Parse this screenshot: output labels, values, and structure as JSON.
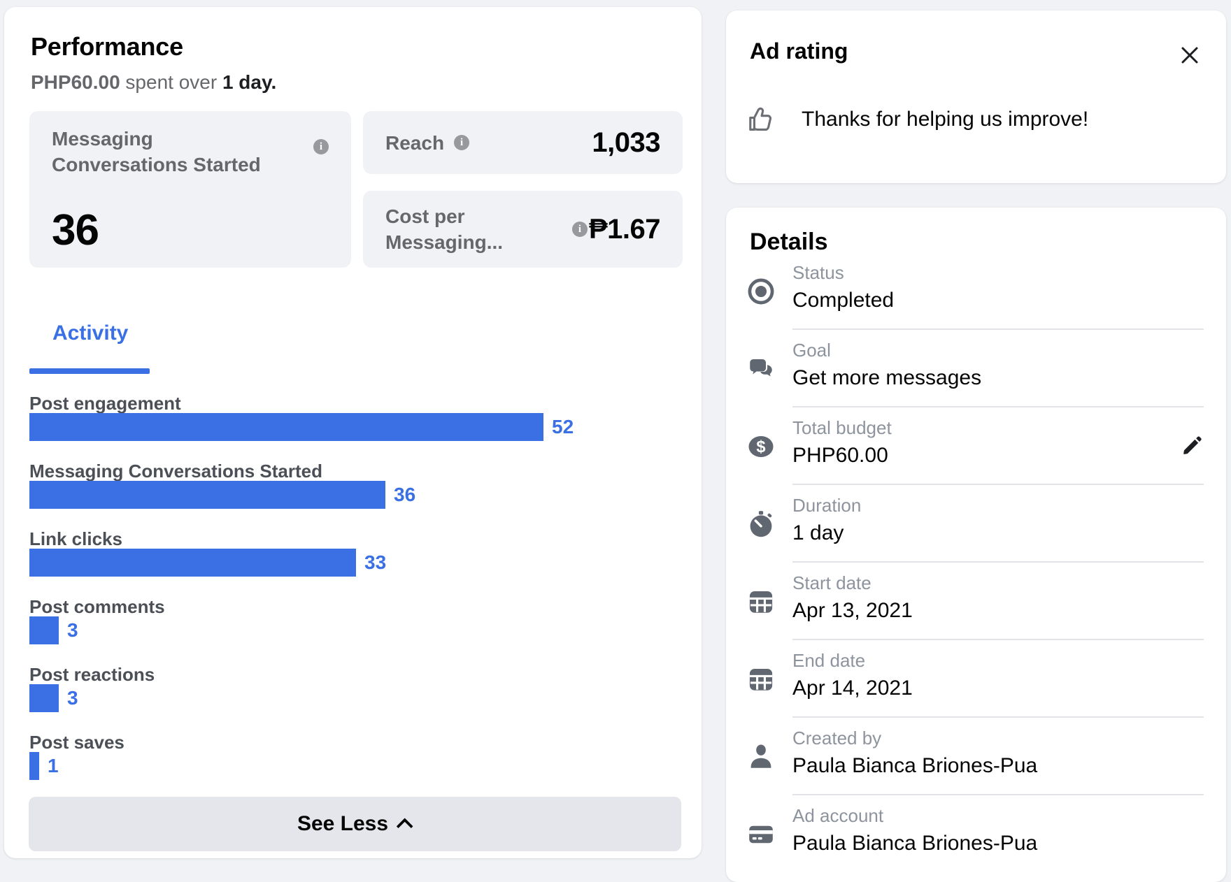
{
  "colors": {
    "accent": "#3B70E5",
    "bar_blue": "#3B70E5"
  },
  "performance": {
    "title": "Performance",
    "spent_amount": "PHP60.00",
    "spent_middle": " spent over ",
    "spent_duration": "1 day.",
    "metrics": {
      "primary": {
        "label": "Messaging Conversations Started",
        "value": "36"
      },
      "reach": {
        "label": "Reach",
        "value": "1,033"
      },
      "cost": {
        "label": "Cost per Messaging...",
        "value": "₱1.67"
      }
    },
    "tab": "Activity",
    "see_less": "See Less"
  },
  "chart_data": {
    "type": "bar",
    "orientation": "horizontal",
    "categories": [
      "Post engagement",
      "Messaging Conversations Started",
      "Link clicks",
      "Post comments",
      "Post reactions",
      "Post saves"
    ],
    "values": [
      52,
      36,
      33,
      3,
      3,
      1
    ],
    "value_labels_shown": true,
    "xlim": [
      0,
      52
    ],
    "bar_color": "#3B70E5",
    "title": "Activity"
  },
  "ad_rating": {
    "title": "Ad rating",
    "message": "Thanks for helping us improve!"
  },
  "details": {
    "title": "Details",
    "rows": [
      {
        "icon": "status-icon",
        "label": "Status",
        "value": "Completed"
      },
      {
        "icon": "goal-icon",
        "label": "Goal",
        "value": "Get more messages"
      },
      {
        "icon": "budget-icon",
        "label": "Total budget",
        "value": "PHP60.00",
        "editable": true
      },
      {
        "icon": "duration-icon",
        "label": "Duration",
        "value": "1 day"
      },
      {
        "icon": "calendar-icon",
        "label": "Start date",
        "value": "Apr 13, 2021"
      },
      {
        "icon": "calendar-icon",
        "label": "End date",
        "value": "Apr 14, 2021"
      },
      {
        "icon": "person-icon",
        "label": "Created by",
        "value": "Paula Bianca Briones-Pua"
      },
      {
        "icon": "card-icon",
        "label": "Ad account",
        "value": "Paula Bianca Briones-Pua"
      }
    ]
  }
}
